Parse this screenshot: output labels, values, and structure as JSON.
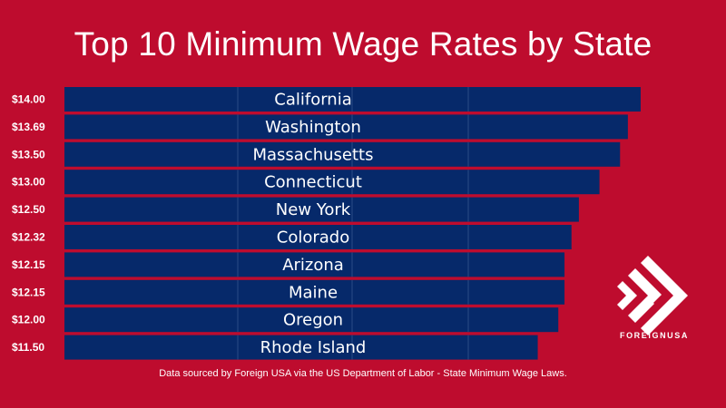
{
  "chart_data": {
    "type": "bar",
    "orientation": "horizontal",
    "title": "Top 10 Minimum Wage Rates by State",
    "categories": [
      "California",
      "Washington",
      "Massachusetts",
      "Connecticut",
      "New York",
      "Colorado",
      "Arizona",
      "Maine",
      "Oregon",
      "Rhode Island"
    ],
    "values": [
      14.0,
      13.69,
      13.5,
      13.0,
      12.5,
      12.32,
      12.15,
      12.15,
      12.0,
      11.5
    ],
    "value_labels": [
      "$14.00",
      "$13.69",
      "$13.50",
      "$13.00",
      "$12.50",
      "$12.32",
      "$12.15",
      "$12.15",
      "$12.00",
      "$11.50"
    ],
    "xlim": [
      0,
      14.2
    ],
    "xlabel": "",
    "ylabel": "",
    "grid": true,
    "legend": "none",
    "colors": {
      "background": "#be0c2e",
      "bar": "#06296a",
      "text": "#ffffff"
    }
  },
  "footer": "Data sourced by Foreign USA via the US Department of Labor - State Minimum Wage Laws.",
  "logo": {
    "text": "FOREIGNUSA",
    "icon": "foreignusa-chevrons-icon"
  }
}
